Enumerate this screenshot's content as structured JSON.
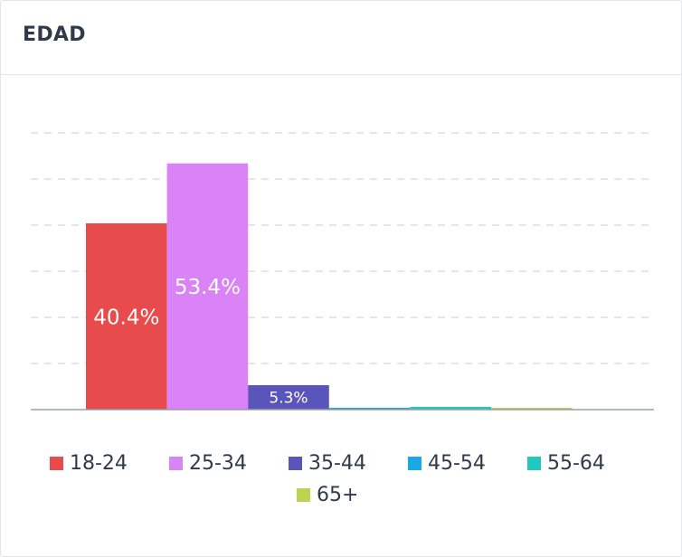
{
  "header": {
    "title": "EDAD"
  },
  "chart_data": {
    "type": "bar",
    "title": "EDAD",
    "categories": [
      "18-24",
      "25-34",
      "35-44",
      "45-54",
      "55-64",
      "65+"
    ],
    "values": [
      40.4,
      53.4,
      5.3,
      0.2,
      0.6,
      0.3
    ],
    "value_labels": [
      "40.4%",
      "53.4%",
      "5.3%",
      "",
      "",
      ""
    ],
    "colors": [
      "#e84b4b",
      "#d983f7",
      "#5a55bb",
      "#1aa9e8",
      "#22c7c0",
      "#b8d452"
    ],
    "ylim": [
      0,
      60
    ],
    "grid": true,
    "legend_position": "bottom"
  }
}
